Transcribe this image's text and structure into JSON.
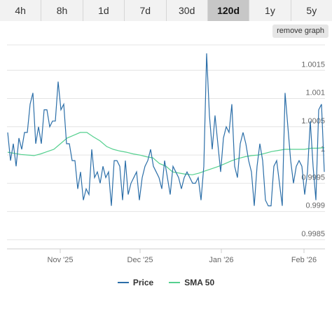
{
  "tabs": [
    {
      "label": "4h",
      "active": false
    },
    {
      "label": "8h",
      "active": false
    },
    {
      "label": "1d",
      "active": false
    },
    {
      "label": "7d",
      "active": false
    },
    {
      "label": "30d",
      "active": false
    },
    {
      "label": "120d",
      "active": true
    },
    {
      "label": "1y",
      "active": false
    },
    {
      "label": "5y",
      "active": false
    }
  ],
  "remove_graph_label": "remove graph",
  "colors": {
    "price": "#2b6ea8",
    "sma": "#55d08f",
    "grid": "#e4e4e4",
    "active_tab": "#c7c7c7"
  },
  "chart_data": {
    "type": "line",
    "x_labels": [
      "Nov '25",
      "Dec '25",
      "Jan '26",
      "Feb '26"
    ],
    "y_ticks": [
      "0.9985",
      "0.999",
      "0.9995",
      "1",
      "1.0005",
      "1.001",
      "1.0015"
    ],
    "ylim": [
      0.99835,
      1.00195
    ],
    "series": [
      {
        "name": "Price",
        "values": [
          1.0004,
          0.9999,
          1.0002,
          0.9998,
          1.0003,
          1.0001,
          1.0004,
          1.0004,
          1.0009,
          1.0011,
          1.0002,
          1.0005,
          1.0002,
          1.0008,
          1.0008,
          1.0005,
          1.0006,
          1.0006,
          1.0013,
          1.0008,
          1.0009,
          1.0002,
          1.0002,
          0.9999,
          0.9999,
          0.9994,
          0.9997,
          0.9992,
          0.9994,
          0.9993,
          1.0001,
          0.9996,
          0.9997,
          0.9995,
          0.9998,
          0.9996,
          0.9997,
          0.9991,
          0.9999,
          0.9999,
          0.9998,
          0.9992,
          0.9999,
          0.9993,
          0.9995,
          0.9996,
          0.9997,
          0.9992,
          0.9996,
          0.9998,
          0.9999,
          1.0001,
          0.9998,
          0.9997,
          0.9996,
          0.9994,
          0.9999,
          0.9996,
          0.9993,
          0.9998,
          0.9997,
          0.9996,
          0.9994,
          0.9996,
          0.9997,
          0.9996,
          0.9995,
          0.9995,
          0.9996,
          0.9992,
          0.9998,
          1.0018,
          1.0007,
          1.0001,
          1.0007,
          1.0002,
          0.9997,
          1.0003,
          1.0005,
          1.0004,
          1.0009,
          0.9998,
          0.9996,
          1.0002,
          1.0004,
          1.0002,
          0.9999,
          0.9997,
          0.9991,
          0.9998,
          1.0002,
          0.9999,
          0.9992,
          0.9991,
          0.9991,
          0.9998,
          0.9999,
          0.9995,
          0.9991,
          1.0011,
          1.0005,
          0.9999,
          0.9995,
          0.9998,
          0.9999,
          0.9998,
          0.9993,
          0.9997,
          1.0006,
          0.9998,
          0.9992,
          1.0008,
          1.0009,
          0.9997
        ]
      },
      {
        "name": "SMA 50",
        "values": [
          1.00005,
          1.00003,
          1.00001,
          1.0,
          0.99999,
          1.00002,
          1.00006,
          1.0001,
          1.0002,
          1.0003,
          1.00035,
          1.0004,
          1.0004,
          1.00032,
          1.00025,
          1.00015,
          1.0001,
          1.00007,
          1.00005,
          1.00002,
          1.0,
          0.99997,
          0.99995,
          0.99985,
          0.9998,
          0.9997,
          0.99968,
          0.99966,
          0.99965,
          0.99968,
          0.99972,
          0.99976,
          0.9998,
          0.99985,
          0.9999,
          0.99994,
          0.99997,
          0.99999,
          1.0,
          1.00003,
          1.00006,
          1.00008,
          1.0001,
          1.0001,
          1.0001,
          1.0001,
          1.00012,
          1.00012,
          1.00013
        ]
      }
    ]
  }
}
